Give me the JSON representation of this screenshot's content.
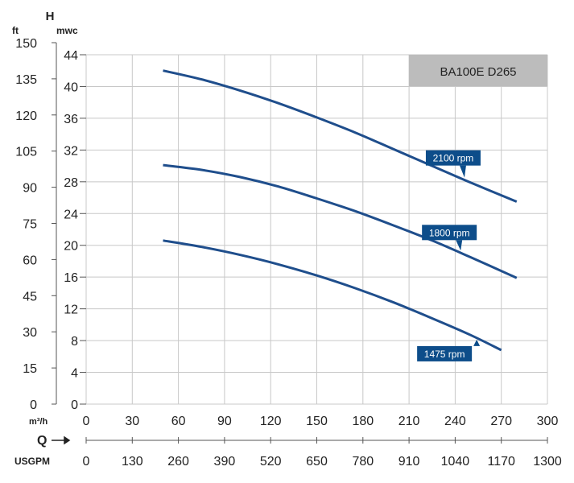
{
  "chart_data": {
    "type": "line",
    "title": "BA100E D265",
    "left_axis_title": "H",
    "ft_unit": "ft",
    "mwc_unit": "mwc",
    "flow_unit": "m³/h",
    "flow_label": "Q",
    "usgpm_unit": "USGPM",
    "ft_ticks": [
      "150",
      "135",
      "120",
      "105",
      "90",
      "75",
      "60",
      "45",
      "30",
      "15",
      "0"
    ],
    "mwc_ticks": [
      "44",
      "40",
      "36",
      "32",
      "28",
      "24",
      "20",
      "16",
      "12",
      "8",
      "4",
      "0"
    ],
    "x_ticks": [
      "0",
      "30",
      "60",
      "90",
      "120",
      "150",
      "180",
      "210",
      "240",
      "270",
      "300"
    ],
    "usgpm_ticks": [
      "0",
      "130",
      "260",
      "390",
      "520",
      "650",
      "780",
      "910",
      "1040",
      "1170",
      "1300"
    ],
    "xlim": [
      0,
      300
    ],
    "ylim": [
      0,
      44
    ],
    "grid": true,
    "colors": {
      "curve": "#1f4e8c",
      "label_bg": "#0d4d8a",
      "title_bg": "#bcbcbc",
      "grid": "#c8c8c8"
    },
    "series": [
      {
        "name": "2100 rpm",
        "x": [
          50,
          75,
          100,
          125,
          150,
          175,
          200,
          225,
          250,
          280
        ],
        "y": [
          42,
          40.9,
          39.5,
          37.9,
          36.1,
          34.2,
          32.1,
          30,
          27.9,
          25.5
        ]
      },
      {
        "name": "1800 rpm",
        "x": [
          50,
          75,
          100,
          125,
          150,
          175,
          200,
          225,
          250,
          280
        ],
        "y": [
          30.1,
          29.5,
          28.6,
          27.4,
          25.9,
          24.3,
          22.5,
          20.6,
          18.5,
          15.9
        ]
      },
      {
        "name": "1475 rpm",
        "x": [
          50,
          75,
          100,
          125,
          150,
          175,
          200,
          225,
          250,
          270
        ],
        "y": [
          20.6,
          19.8,
          18.8,
          17.6,
          16.2,
          14.6,
          12.8,
          10.8,
          8.7,
          6.8
        ]
      }
    ]
  }
}
